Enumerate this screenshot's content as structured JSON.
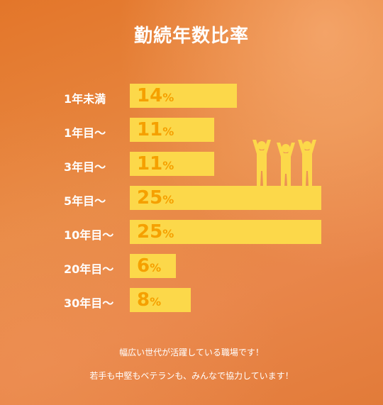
{
  "title": "勤続年数比率",
  "chart_data": {
    "type": "bar",
    "orientation": "horizontal",
    "categories": [
      "1年未満",
      "1年目〜",
      "3年目〜",
      "5年目〜",
      "10年目〜",
      "20年目〜",
      "30年目〜"
    ],
    "values": [
      14,
      11,
      11,
      25,
      25,
      6,
      8
    ],
    "unit": "%",
    "xlim": [
      0,
      25
    ],
    "bar_color": "#fcd84a",
    "value_color": "#f5a000"
  },
  "icon": "people-cheering-icon",
  "footer": {
    "line1": "幅広い世代が活躍している職場です！",
    "line2": "若手も中堅もベテランも、みんなで協力しています！"
  }
}
